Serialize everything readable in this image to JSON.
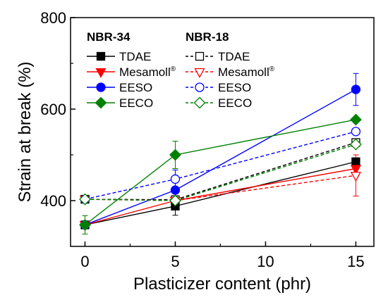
{
  "chart_data": {
    "type": "line",
    "xlabel": "Plasticizer content (phr)",
    "ylabel": "Strain at break (%)",
    "xlim": [
      -0.8,
      16
    ],
    "ylim": [
      300,
      800
    ],
    "x_ticks": [
      0,
      5,
      10,
      15
    ],
    "y_ticks": [
      400,
      600,
      800
    ],
    "x_tick_labels": [
      "0",
      "5",
      "10",
      "15"
    ],
    "y_tick_labels": [
      "400",
      "600",
      "800"
    ],
    "grid": false,
    "legend_placement": "top-left, two columns",
    "legend_groups": [
      {
        "title": "NBR-34",
        "fill": "filled",
        "line_style": "solid"
      },
      {
        "title": "NBR-18",
        "fill": "open",
        "line_style": "dashed"
      }
    ],
    "series": [
      {
        "name": "TDAE",
        "group": "NBR-34",
        "marker": "square",
        "color": "#000000",
        "fill": "filled",
        "line": "solid",
        "x": [
          0,
          5,
          15
        ],
        "y": [
          347,
          388,
          485
        ],
        "error": [
          0,
          20,
          0
        ]
      },
      {
        "name": "Mesamoll",
        "name_superscript": "®",
        "group": "NBR-34",
        "marker": "triangle-down",
        "color": "#ff0000",
        "fill": "filled",
        "line": "solid",
        "x": [
          0,
          5,
          15
        ],
        "y": [
          347,
          400,
          470
        ],
        "error": [
          0,
          20,
          15
        ]
      },
      {
        "name": "EESO",
        "group": "NBR-34",
        "marker": "circle",
        "color": "#0000ff",
        "fill": "filled",
        "line": "solid",
        "x": [
          0,
          5,
          15
        ],
        "y": [
          347,
          423,
          643
        ],
        "error": [
          0,
          18,
          35
        ]
      },
      {
        "name": "EECO",
        "group": "NBR-34",
        "marker": "diamond",
        "color": "#008000",
        "fill": "filled",
        "line": "solid",
        "x": [
          0,
          5,
          15
        ],
        "y": [
          347,
          500,
          577
        ],
        "error": [
          20,
          30,
          0
        ]
      },
      {
        "name": "TDAE",
        "group": "NBR-18",
        "marker": "square",
        "color": "#000000",
        "fill": "open",
        "line": "dashed",
        "x": [
          0,
          5,
          15
        ],
        "y": [
          403,
          402,
          527
        ],
        "error": [
          0,
          0,
          0
        ]
      },
      {
        "name": "Mesamoll",
        "name_superscript": "®",
        "group": "NBR-18",
        "marker": "triangle-down",
        "color": "#ff0000",
        "fill": "open",
        "line": "dashed",
        "x": [
          0,
          5,
          15
        ],
        "y": [
          403,
          400,
          455
        ],
        "error": [
          0,
          0,
          45
        ]
      },
      {
        "name": "EESO",
        "group": "NBR-18",
        "marker": "circle",
        "color": "#0000ff",
        "fill": "open",
        "line": "dashed",
        "x": [
          0,
          5,
          15
        ],
        "y": [
          403,
          447,
          551
        ],
        "error": [
          0,
          20,
          0
        ]
      },
      {
        "name": "EECO",
        "group": "NBR-18",
        "marker": "diamond",
        "color": "#008000",
        "fill": "open",
        "line": "dashed",
        "x": [
          0,
          5,
          15
        ],
        "y": [
          403,
          400,
          523
        ],
        "error": [
          0,
          0,
          0
        ]
      }
    ]
  }
}
